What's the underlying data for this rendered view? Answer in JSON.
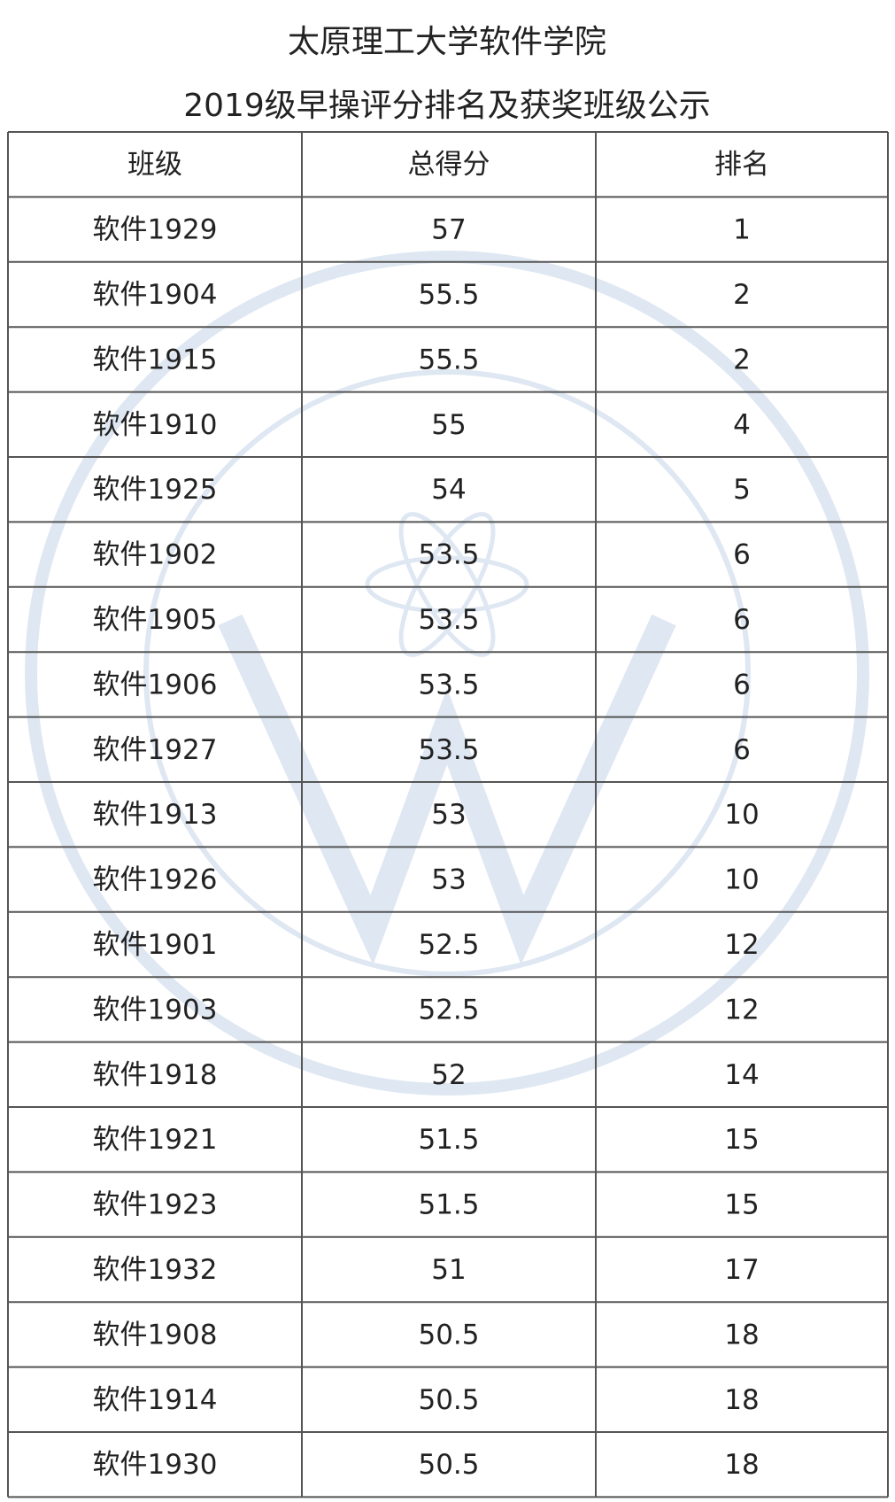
{
  "header": {
    "title": "太原理工大学软件学院",
    "subtitle": "2019级早操评分排名及获奖班级公示"
  },
  "table": {
    "columns": [
      "班级",
      "总得分",
      "排名"
    ],
    "rows": [
      [
        "软件1929",
        57,
        1
      ],
      [
        "软件1904",
        55.5,
        2
      ],
      [
        "软件1915",
        55.5,
        2
      ],
      [
        "软件1910",
        55,
        4
      ],
      [
        "软件1925",
        54,
        5
      ],
      [
        "软件1902",
        53.5,
        6
      ],
      [
        "软件1905",
        53.5,
        6
      ],
      [
        "软件1906",
        53.5,
        6
      ],
      [
        "软件1927",
        53.5,
        6
      ],
      [
        "软件1913",
        53,
        10
      ],
      [
        "软件1926",
        53,
        10
      ],
      [
        "软件1901",
        52.5,
        12
      ],
      [
        "软件1903",
        52.5,
        12
      ],
      [
        "软件1918",
        52,
        14
      ],
      [
        "软件1921",
        51.5,
        15
      ],
      [
        "软件1923",
        51.5,
        15
      ],
      [
        "软件1932",
        51,
        17
      ],
      [
        "软件1908",
        50.5,
        18
      ],
      [
        "软件1914",
        50.5,
        18
      ],
      [
        "软件1930",
        50.5,
        18
      ]
    ]
  }
}
